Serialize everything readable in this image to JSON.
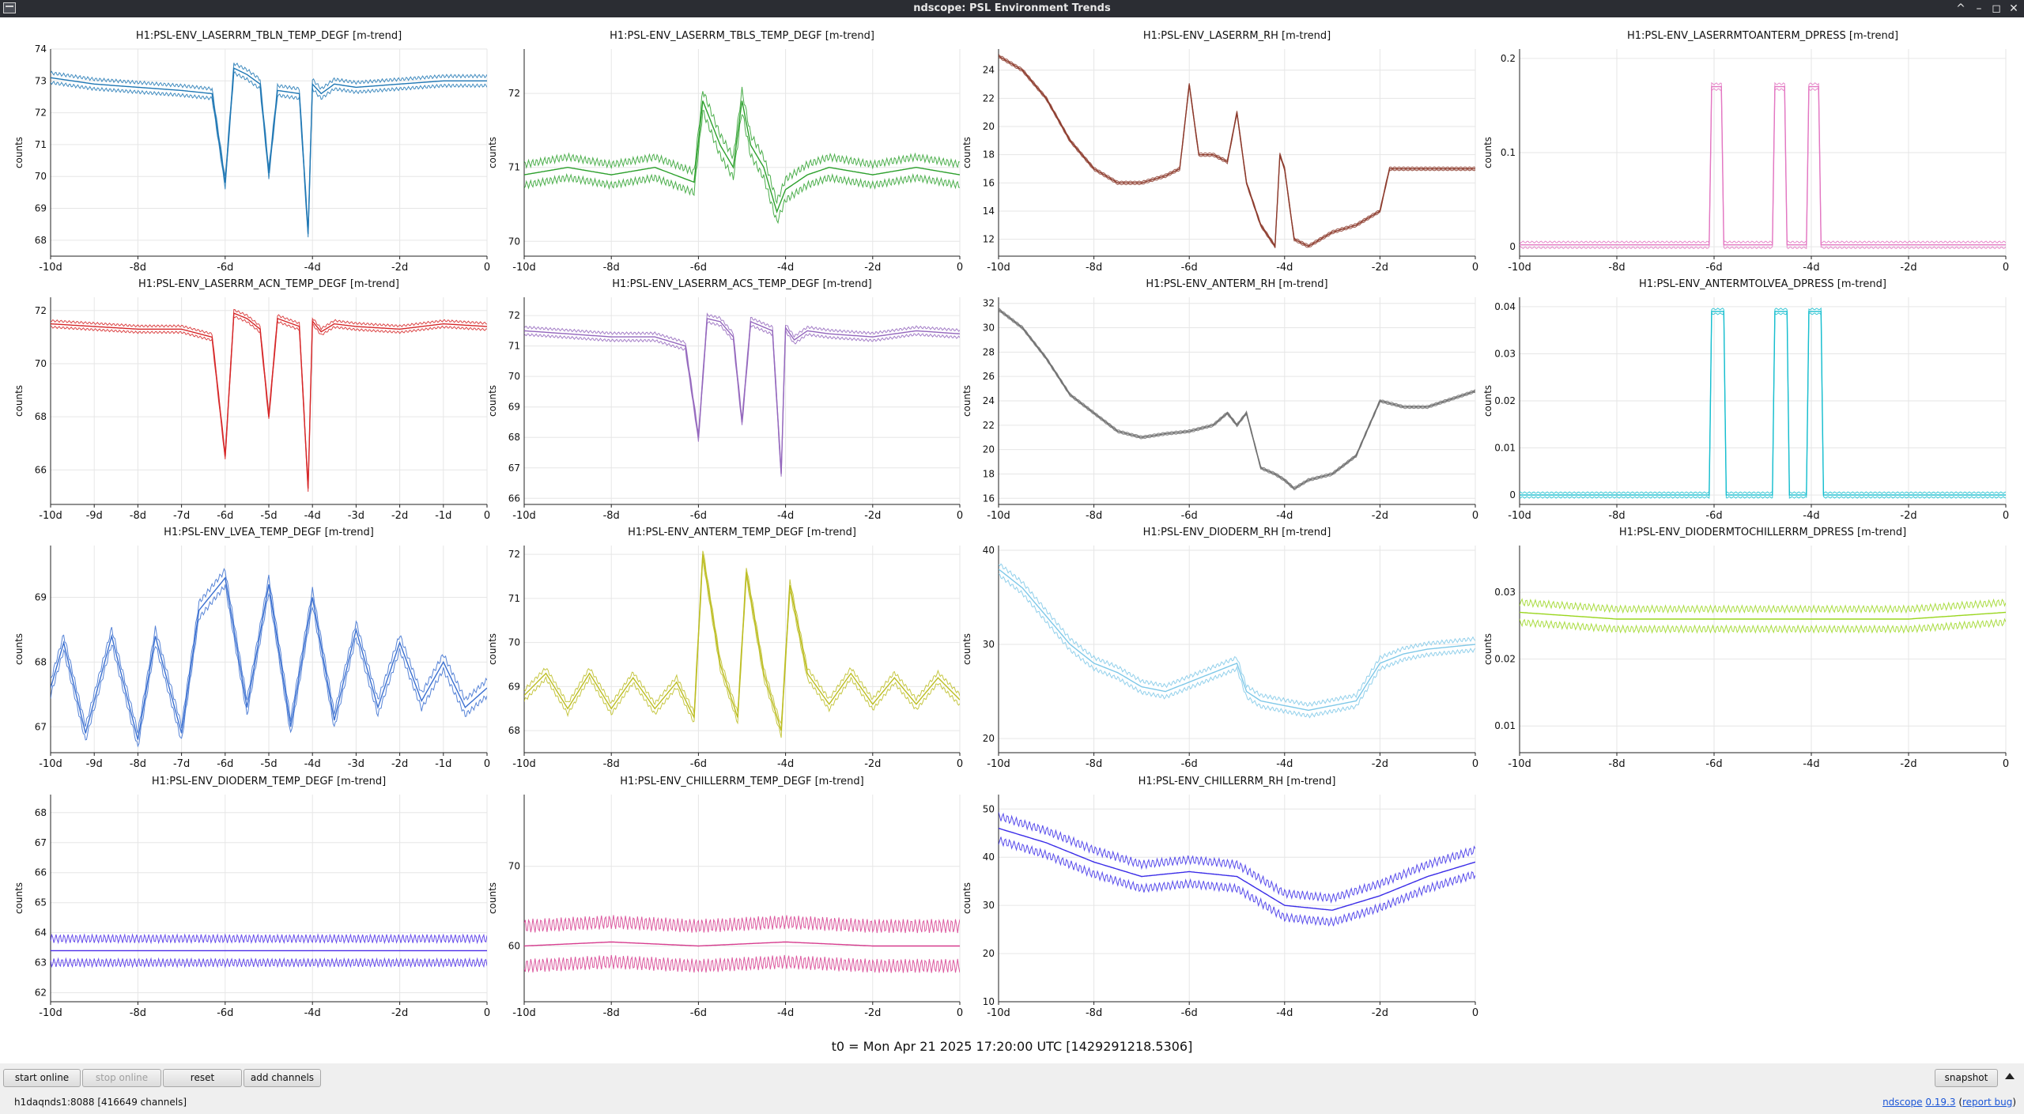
{
  "window": {
    "title": "ndscope: PSL Environment Trends",
    "buttons": [
      "^",
      "–",
      "◻",
      "✕"
    ]
  },
  "x_unit_suffix": "d",
  "t0_text": "t0 = Mon Apr 21 2025 17:20:00 UTC [1429291218.5306]",
  "toolbar": {
    "start_online": "start online",
    "stop_online": "stop online",
    "reset": "reset",
    "add_channels": "add channels",
    "snapshot": "snapshot"
  },
  "status": {
    "server": "h1daqnds1:8088  [416649 channels]",
    "app": "ndscope",
    "version": "0.19.3",
    "report": "report bug"
  },
  "chart_data": [
    {
      "type": "line",
      "title": "H1:PSL-ENV_LASERRM_TBLN_TEMP_DEGF [m-trend]",
      "ylabel": "counts",
      "color": "#1f77b4",
      "xlim": [
        -10,
        0
      ],
      "ylim": [
        67.5,
        74
      ],
      "yticks": [
        68,
        69,
        70,
        71,
        72,
        73,
        74
      ],
      "xticks": [
        -10,
        -8,
        -6,
        -4,
        -2,
        0
      ],
      "xticklabels": [
        "-10d",
        "-8d",
        "-6d",
        "-4d",
        "-2d",
        "0"
      ],
      "band": 0.15,
      "x": [
        -10,
        -9,
        -8,
        -7,
        -6.3,
        -6,
        -5.8,
        -5.5,
        -5.2,
        -5,
        -4.8,
        -4.3,
        -4.1,
        -4,
        -3.8,
        -3.5,
        -3,
        -2,
        -1,
        0
      ],
      "y": [
        73.1,
        72.9,
        72.8,
        72.7,
        72.6,
        69.8,
        73.4,
        73.2,
        72.9,
        70.1,
        72.7,
        72.6,
        68.2,
        72.9,
        72.6,
        72.9,
        72.8,
        72.9,
        73.0,
        73.0
      ]
    },
    {
      "type": "line",
      "title": "H1:PSL-ENV_LASERRM_TBLS_TEMP_DEGF [m-trend]",
      "ylabel": "counts",
      "color": "#2ca02c",
      "xlim": [
        -10,
        0
      ],
      "ylim": [
        69.8,
        72.6
      ],
      "yticks": [
        70,
        71,
        72
      ],
      "xticks": [
        -10,
        -8,
        -6,
        -4,
        -2,
        0
      ],
      "xticklabels": [
        "-10d",
        "-8d",
        "-6d",
        "-4d",
        "-2d",
        "0"
      ],
      "band": 0.14,
      "x": [
        -10,
        -9,
        -8,
        -7,
        -6.1,
        -5.9,
        -5.5,
        -5.2,
        -5,
        -4.8,
        -4.5,
        -4.2,
        -4,
        -3.5,
        -3,
        -2,
        -1,
        0
      ],
      "y": [
        70.9,
        71.0,
        70.9,
        71.0,
        70.8,
        71.9,
        71.3,
        71.0,
        71.9,
        71.3,
        71.0,
        70.4,
        70.7,
        70.9,
        71.0,
        70.9,
        71.0,
        70.9
      ]
    },
    {
      "type": "line",
      "title": "H1:PSL-ENV_LASERRM_RH [m-trend]",
      "ylabel": "counts",
      "color": "#8c3a2b",
      "xlim": [
        -10,
        0
      ],
      "ylim": [
        10.8,
        25.5
      ],
      "yticks": [
        12,
        14,
        16,
        18,
        20,
        22,
        24
      ],
      "xticks": [
        -10,
        -8,
        -6,
        -4,
        -2,
        0
      ],
      "xticklabels": [
        "-10d",
        "-8d",
        "-6d",
        "-4d",
        "-2d",
        "0"
      ],
      "band": 0.1,
      "x": [
        -10,
        -9.5,
        -9,
        -8.5,
        -8,
        -7.5,
        -7,
        -6.5,
        -6.2,
        -6,
        -5.8,
        -5.5,
        -5.2,
        -5,
        -4.8,
        -4.5,
        -4.2,
        -4.1,
        -4,
        -3.8,
        -3.5,
        -3,
        -2.5,
        -2,
        -1.8,
        -1,
        0
      ],
      "y": [
        25,
        24,
        22,
        19,
        17,
        16,
        16,
        16.5,
        17,
        23,
        18,
        18,
        17.5,
        21,
        16,
        13,
        11.5,
        18,
        17,
        12,
        11.5,
        12.5,
        13,
        14,
        17,
        17,
        17
      ]
    },
    {
      "type": "line",
      "title": "H1:PSL-ENV_LASERRMTOANTERM_DPRESS [m-trend]",
      "ylabel": "counts",
      "color": "#e377c2",
      "xlim": [
        -10,
        0
      ],
      "ylim": [
        -0.01,
        0.21
      ],
      "yticks": [
        0,
        0.1,
        0.2
      ],
      "xticks": [
        -10,
        -8,
        -6,
        -4,
        -2,
        0
      ],
      "xticklabels": [
        "-10d",
        "-8d",
        "-6d",
        "-4d",
        "-2d",
        "0"
      ],
      "band": 0.003,
      "x": [
        -10,
        -6.1,
        -6.05,
        -5.85,
        -5.8,
        -4.8,
        -4.75,
        -4.55,
        -4.5,
        -4.1,
        -4.05,
        -3.85,
        -3.8,
        0
      ],
      "y": [
        0.002,
        0.002,
        0.17,
        0.17,
        0.002,
        0.002,
        0.17,
        0.17,
        0.002,
        0.002,
        0.17,
        0.17,
        0.002,
        0.002
      ]
    },
    {
      "type": "line",
      "title": "H1:PSL-ENV_LASERRM_ACN_TEMP_DEGF [m-trend]",
      "ylabel": "counts",
      "color": "#d62728",
      "xlim": [
        -10,
        0
      ],
      "ylim": [
        64.7,
        72.5
      ],
      "yticks": [
        66,
        68,
        70,
        72
      ],
      "xticks": [
        -10,
        -9,
        -8,
        -7,
        -6,
        -5,
        -4,
        -3,
        -2,
        -1,
        0
      ],
      "xticklabels": [
        "-10d",
        "-9d",
        "-8d",
        "-7d",
        "-6d",
        "-5d",
        "-4d",
        "-3d",
        "-2d",
        "-1d",
        "0"
      ],
      "band": 0.12,
      "x": [
        -10,
        -9,
        -8,
        -7,
        -6.3,
        -6,
        -5.8,
        -5.5,
        -5.2,
        -5,
        -4.8,
        -4.3,
        -4.1,
        -4,
        -3.8,
        -3.5,
        -3,
        -2,
        -1,
        0
      ],
      "y": [
        71.5,
        71.4,
        71.3,
        71.3,
        71.0,
        66.5,
        71.9,
        71.7,
        71.3,
        68.0,
        71.7,
        71.4,
        65.3,
        71.6,
        71.2,
        71.5,
        71.4,
        71.3,
        71.5,
        71.4
      ]
    },
    {
      "type": "line",
      "title": "H1:PSL-ENV_LASERRM_ACS_TEMP_DEGF [m-trend]",
      "ylabel": "counts",
      "color": "#9467bd",
      "xlim": [
        -10,
        0
      ],
      "ylim": [
        65.8,
        72.6
      ],
      "yticks": [
        66,
        67,
        68,
        69,
        70,
        71,
        72
      ],
      "xticks": [
        -10,
        -8,
        -6,
        -4,
        -2,
        0
      ],
      "xticklabels": [
        "-10d",
        "-8d",
        "-6d",
        "-4d",
        "-2d",
        "0"
      ],
      "band": 0.12,
      "x": [
        -10,
        -9,
        -8,
        -7,
        -6.3,
        -6,
        -5.8,
        -5.5,
        -5.2,
        -5,
        -4.8,
        -4.3,
        -4.1,
        -4,
        -3.8,
        -3.5,
        -3,
        -2,
        -1,
        0
      ],
      "y": [
        71.5,
        71.4,
        71.3,
        71.3,
        71.0,
        68.0,
        71.9,
        71.8,
        71.3,
        68.5,
        71.8,
        71.5,
        66.8,
        71.6,
        71.2,
        71.5,
        71.4,
        71.3,
        71.5,
        71.4
      ]
    },
    {
      "type": "line",
      "title": "H1:PSL-ENV_ANTERM_RH [m-trend]",
      "ylabel": "counts",
      "color": "#6f6f6f",
      "xlim": [
        -10,
        0
      ],
      "ylim": [
        15.5,
        32.5
      ],
      "yticks": [
        16,
        18,
        20,
        22,
        24,
        26,
        28,
        30,
        32
      ],
      "xticks": [
        -10,
        -8,
        -6,
        -4,
        -2,
        0
      ],
      "xticklabels": [
        "-10d",
        "-8d",
        "-6d",
        "-4d",
        "-2d",
        "0"
      ],
      "band": 0.1,
      "x": [
        -10,
        -9.5,
        -9,
        -8.5,
        -8,
        -7.5,
        -7,
        -6.5,
        -6,
        -5.5,
        -5.2,
        -5,
        -4.8,
        -4.5,
        -4.2,
        -4,
        -3.8,
        -3.5,
        -3,
        -2.5,
        -2,
        -1.5,
        -1,
        0
      ],
      "y": [
        31.5,
        30,
        27.5,
        24.5,
        23,
        21.5,
        21,
        21.3,
        21.5,
        22,
        23,
        22,
        23,
        18.5,
        18,
        17.5,
        16.8,
        17.5,
        18,
        19.5,
        24,
        23.5,
        23.5,
        24.8
      ]
    },
    {
      "type": "line",
      "title": "H1:PSL-ENV_ANTERMTOLVEA_DPRESS [m-trend]",
      "ylabel": "counts",
      "color": "#17becf",
      "xlim": [
        -10,
        0
      ],
      "ylim": [
        -0.002,
        0.042
      ],
      "yticks": [
        0,
        0.01,
        0.02,
        0.03,
        0.04
      ],
      "xticks": [
        -10,
        -8,
        -6,
        -4,
        -2,
        0
      ],
      "xticklabels": [
        "-10d",
        "-8d",
        "-6d",
        "-4d",
        "-2d",
        "0"
      ],
      "band": 0.0005,
      "x": [
        -10,
        -6.1,
        -6.05,
        -5.8,
        -5.75,
        -4.8,
        -4.75,
        -4.5,
        -4.45,
        -4.1,
        -4.05,
        -3.8,
        -3.75,
        0
      ],
      "y": [
        0,
        0,
        0.039,
        0.039,
        0,
        0,
        0.039,
        0.039,
        0,
        0,
        0.039,
        0.039,
        0,
        0
      ]
    },
    {
      "type": "line",
      "title": "H1:PSL-ENV_LVEA_TEMP_DEGF [m-trend]",
      "ylabel": "counts",
      "color": "#3a6fd0",
      "xlim": [
        -10,
        0
      ],
      "ylim": [
        66.6,
        69.8
      ],
      "yticks": [
        67,
        68,
        69
      ],
      "xticks": [
        -10,
        -9,
        -8,
        -7,
        -6,
        -5,
        -4,
        -3,
        -2,
        -1,
        0
      ],
      "xticklabels": [
        "-10d",
        "-9d",
        "-8d",
        "-7d",
        "-6d",
        "-5d",
        "-4d",
        "-3d",
        "-2d",
        "-1d",
        "0"
      ],
      "band": 0.12,
      "x": [
        -10,
        -9.7,
        -9.2,
        -8.6,
        -8,
        -7.6,
        -7,
        -6.6,
        -6,
        -5.5,
        -5,
        -4.5,
        -4,
        -3.5,
        -3,
        -2.5,
        -2,
        -1.5,
        -1,
        -0.5,
        0
      ],
      "y": [
        67.6,
        68.3,
        66.9,
        68.4,
        66.8,
        68.4,
        66.9,
        68.8,
        69.3,
        67.3,
        69.2,
        67.0,
        69.0,
        67.1,
        68.5,
        67.3,
        68.3,
        67.4,
        68.0,
        67.3,
        67.6
      ]
    },
    {
      "type": "line",
      "title": "H1:PSL-ENV_ANTERM_TEMP_DEGF [m-trend]",
      "ylabel": "counts",
      "color": "#bcbd22",
      "xlim": [
        -10,
        0
      ],
      "ylim": [
        67.5,
        72.2
      ],
      "yticks": [
        68,
        69,
        70,
        71,
        72
      ],
      "xticks": [
        -10,
        -8,
        -6,
        -4,
        -2,
        0
      ],
      "xticklabels": [
        "-10d",
        "-8d",
        "-6d",
        "-4d",
        "-2d",
        "0"
      ],
      "band": 0.12,
      "x": [
        -10,
        -9.5,
        -9,
        -8.5,
        -8,
        -7.5,
        -7,
        -6.5,
        -6.1,
        -5.9,
        -5.5,
        -5.1,
        -4.9,
        -4.5,
        -4.1,
        -3.9,
        -3.5,
        -3,
        -2.5,
        -2,
        -1.5,
        -1,
        -0.5,
        0
      ],
      "y": [
        68.8,
        69.3,
        68.5,
        69.3,
        68.5,
        69.2,
        68.5,
        69.1,
        68.3,
        72.0,
        69.5,
        68.3,
        71.6,
        69.3,
        68.0,
        71.3,
        69.3,
        68.6,
        69.3,
        68.6,
        69.2,
        68.6,
        69.2,
        68.7
      ]
    },
    {
      "type": "line",
      "title": "H1:PSL-ENV_DIODERM_RH [m-trend]",
      "ylabel": "counts",
      "color": "#7fc8e8",
      "xlim": [
        -10,
        0
      ],
      "ylim": [
        18.5,
        40.5
      ],
      "yticks": [
        20,
        30,
        40
      ],
      "xticks": [
        -10,
        -8,
        -6,
        -4,
        -2,
        0
      ],
      "xticklabels": [
        "-10d",
        "-8d",
        "-6d",
        "-4d",
        "-2d",
        "0"
      ],
      "band": 0.6,
      "x": [
        -10,
        -9.5,
        -9,
        -8.5,
        -8,
        -7.5,
        -7,
        -6.5,
        -6,
        -5.5,
        -5,
        -4.8,
        -4.5,
        -4,
        -3.5,
        -3,
        -2.5,
        -2,
        -1.5,
        -1,
        0
      ],
      "y": [
        38,
        36,
        33,
        30,
        28,
        27,
        25.5,
        25,
        26,
        27,
        28,
        25,
        24,
        23.5,
        23,
        23.5,
        24,
        28,
        29,
        29.5,
        30
      ]
    },
    {
      "type": "line",
      "title": "H1:PSL-ENV_DIODERMTOCHILLERRM_DPRESS [m-trend]",
      "ylabel": "counts",
      "color": "#9ad61f",
      "xlim": [
        -10,
        0
      ],
      "ylim": [
        0.006,
        0.037
      ],
      "yticks": [
        0.01,
        0.02,
        0.03
      ],
      "xticks": [
        -10,
        -8,
        -6,
        -4,
        -2,
        0
      ],
      "xticklabels": [
        "-10d",
        "-8d",
        "-6d",
        "-4d",
        "-2d",
        "0"
      ],
      "band": 0.0015,
      "x": [
        -10,
        -8,
        -6,
        -4,
        -2,
        0
      ],
      "y": [
        0.027,
        0.026,
        0.026,
        0.026,
        0.026,
        0.027
      ]
    },
    {
      "type": "line",
      "title": "H1:PSL-ENV_DIODERM_TEMP_DEGF [m-trend]",
      "ylabel": "counts",
      "color": "#4a2ce8",
      "xlim": [
        -10,
        0
      ],
      "ylim": [
        61.7,
        68.6
      ],
      "yticks": [
        62,
        63,
        64,
        65,
        66,
        67,
        68
      ],
      "xticks": [
        -10,
        -8,
        -6,
        -4,
        -2,
        0
      ],
      "xticklabels": [
        "-10d",
        "-8d",
        "-6d",
        "-4d",
        "-2d",
        "0"
      ],
      "band": 0.4,
      "x": [
        -10,
        -8,
        -6,
        -4,
        -2,
        0
      ],
      "y": [
        63.4,
        63.4,
        63.4,
        63.4,
        63.4,
        63.4
      ]
    },
    {
      "type": "line",
      "title": "H1:PSL-ENV_CHILLERRM_TEMP_DEGF [m-trend]",
      "ylabel": "counts",
      "color": "#d63c8e",
      "xlim": [
        -10,
        0
      ],
      "ylim": [
        53,
        79
      ],
      "yticks": [
        60,
        70
      ],
      "xticks": [
        -10,
        -8,
        -6,
        -4,
        -2,
        0
      ],
      "xticklabels": [
        "-10d",
        "-8d",
        "-6d",
        "-4d",
        "-2d",
        "0"
      ],
      "band": 2.5,
      "x": [
        -10,
        -8,
        -6,
        -4,
        -2,
        0
      ],
      "y": [
        60,
        60.5,
        60,
        60.5,
        60,
        60
      ]
    },
    {
      "type": "line",
      "title": "H1:PSL-ENV_CHILLERRM_RH [m-trend]",
      "ylabel": "counts",
      "color": "#3a2ce8",
      "xlim": [
        -10,
        0
      ],
      "ylim": [
        10,
        53
      ],
      "yticks": [
        10,
        20,
        30,
        40,
        50
      ],
      "xticks": [
        -10,
        -8,
        -6,
        -4,
        -2,
        0
      ],
      "xticklabels": [
        "-10d",
        "-8d",
        "-6d",
        "-4d",
        "-2d",
        "0"
      ],
      "band": 2.5,
      "x": [
        -10,
        -9,
        -8,
        -7,
        -6,
        -5,
        -4,
        -3,
        -2,
        -1,
        0
      ],
      "y": [
        46,
        43,
        39,
        36,
        37,
        36,
        30,
        29,
        32,
        36,
        39
      ]
    }
  ]
}
